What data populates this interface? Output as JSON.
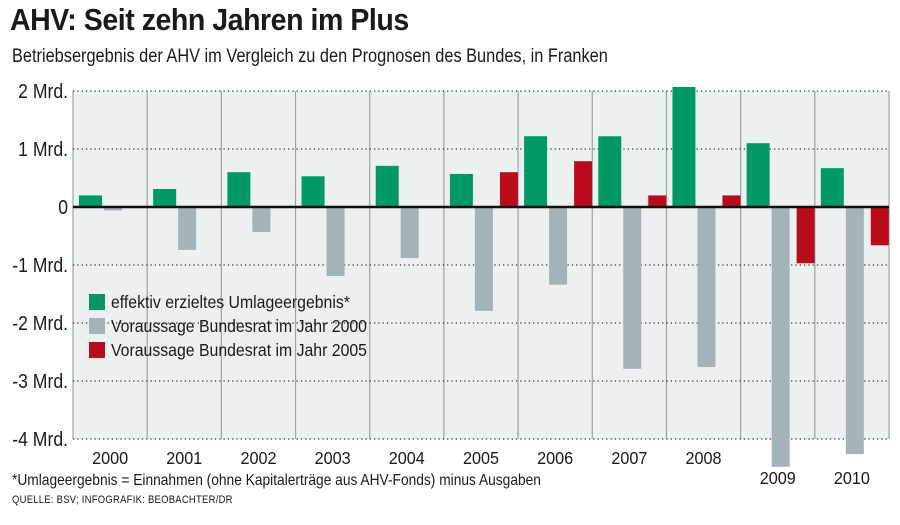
{
  "header": {
    "title": "AHV: Seit zehn Jahren im Plus",
    "subtitle": "Betriebsergebnis der AHV im Vergleich zu den Prognosen des Bundes, in Franken"
  },
  "footer": {
    "footnote": "*Umlageergebnis = Einnahmen (ohne Kapitalerträge aus AHV-Fonds) minus Ausgaben",
    "source": "QUELLE: BSV; INFOGRAFIK: BEOBACHTER/DR"
  },
  "chart_data": {
    "type": "bar",
    "title": "AHV: Seit zehn Jahren im Plus",
    "subtitle": "Betriebsergebnis der AHV im Vergleich zu den Prognosen des Bundes, in Franken",
    "xlabel": "",
    "ylabel": "",
    "unit": "Mrd. Franken",
    "ylim": [
      -4,
      2
    ],
    "yticks": [
      2,
      1,
      0,
      -1,
      -2,
      -3,
      -4
    ],
    "ytick_labels": [
      "2 Mrd.",
      "1 Mrd.",
      "0",
      "-1 Mrd.",
      "-2 Mrd.",
      "-3 Mrd.",
      "-4 Mrd."
    ],
    "grid": true,
    "legend_position": "center-left",
    "categories": [
      "2000",
      "2001",
      "2002",
      "2003",
      "2004",
      "2005",
      "2006",
      "2007",
      "2008",
      "2009",
      "2010"
    ],
    "series": [
      {
        "name": "effektiv erzieltes Umlageergebnis*",
        "color": "#009966",
        "values": [
          0.2,
          0.31,
          0.6,
          0.53,
          0.71,
          0.57,
          1.22,
          1.22,
          2.07,
          1.1,
          0.67
        ]
      },
      {
        "name": "Voraussage Bundesrat im Jahr 2000",
        "color": "#a3b3b7",
        "values": [
          -0.06,
          -0.74,
          -0.43,
          -1.19,
          -0.88,
          -1.79,
          -1.34,
          -2.79,
          -2.76,
          -4.48,
          -4.26
        ]
      },
      {
        "name": "Voraussage Bundesrat im Jahr 2005",
        "color": "#b80c1c",
        "values": [
          null,
          null,
          null,
          null,
          null,
          0.6,
          0.79,
          0.2,
          0.2,
          -0.97,
          -0.66
        ]
      }
    ]
  },
  "colors": {
    "plot_background": "#edf0f1",
    "zero_line": "#111111",
    "gridline": "#333333",
    "separator": "#9aa3a6"
  }
}
